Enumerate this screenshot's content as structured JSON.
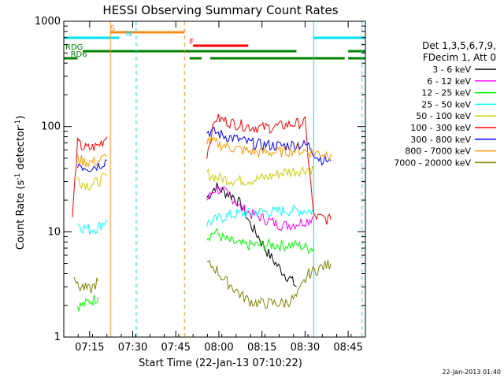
{
  "chart_data": {
    "type": "line",
    "title": "HESSI Observing Summary Count Rates",
    "xlabel": "Start Time (22-Jan-13 07:10:22)",
    "ylabel_main": "Count Rate (s",
    "ylabel_sup1": "-1",
    "ylabel_mid": " detector",
    "ylabel_sup2": "-1",
    "ylabel_end": ")",
    "xlim": [
      7.1,
      8.85
    ],
    "ylim": [
      1,
      1000
    ],
    "yscale": "log",
    "x_ticks": [
      {
        "t": 7.25,
        "label": "07:15"
      },
      {
        "t": 7.5,
        "label": "07:30"
      },
      {
        "t": 7.75,
        "label": "07:45"
      },
      {
        "t": 8.0,
        "label": "08:00"
      },
      {
        "t": 8.25,
        "label": "08:15"
      },
      {
        "t": 8.5,
        "label": "08:30"
      },
      {
        "t": 8.75,
        "label": "08:45"
      }
    ],
    "y_ticks": [
      {
        "v": 1,
        "label": "1"
      },
      {
        "v": 10,
        "label": "10"
      },
      {
        "v": 100,
        "label": "100"
      },
      {
        "v": 1000,
        "label": "1000"
      }
    ],
    "legend_header": [
      "Det 1,3,5,6,7,9,",
      "FDecim 1, Att 0"
    ],
    "series": [
      {
        "name": "3 - 6 keV",
        "color": "#000000",
        "points": [
          [
            7.93,
            21
          ],
          [
            7.98,
            27
          ],
          [
            8.03,
            24
          ],
          [
            8.08,
            22
          ],
          [
            8.13,
            18
          ],
          [
            8.18,
            12
          ],
          [
            8.23,
            9
          ],
          [
            8.28,
            6.5
          ],
          [
            8.33,
            5
          ],
          [
            8.38,
            4
          ],
          [
            8.42,
            3.5
          ],
          [
            8.45,
            3
          ]
        ]
      },
      {
        "name": "6 - 12 keV",
        "color": "#ff00ff",
        "points": [
          [
            7.93,
            20
          ],
          [
            7.98,
            26
          ],
          [
            8.03,
            24
          ],
          [
            8.08,
            21
          ],
          [
            8.13,
            17
          ],
          [
            8.18,
            15
          ],
          [
            8.23,
            14
          ],
          [
            8.28,
            13
          ],
          [
            8.33,
            12
          ],
          [
            8.38,
            11.5
          ],
          [
            8.45,
            12
          ],
          [
            8.52,
            13
          ],
          [
            8.55,
            14
          ]
        ]
      },
      {
        "name": "12 - 25 keV",
        "color": "#00ff00",
        "points": [
          [
            7.18,
            2
          ],
          [
            7.21,
            2
          ],
          [
            7.25,
            2.2
          ],
          [
            7.3,
            2.4
          ],
          [
            7.93,
            9
          ],
          [
            7.98,
            10
          ],
          [
            8.03,
            8.5
          ],
          [
            8.08,
            8
          ],
          [
            8.13,
            7.5
          ],
          [
            8.18,
            7.5
          ],
          [
            8.23,
            7.5
          ],
          [
            8.28,
            7.5
          ],
          [
            8.33,
            7.5
          ],
          [
            8.38,
            7.5
          ],
          [
            8.45,
            7.5
          ],
          [
            8.52,
            7
          ],
          [
            8.55,
            7
          ]
        ]
      },
      {
        "name": "25 - 50 keV",
        "color": "#00ffff",
        "points": [
          [
            7.18,
            12
          ],
          [
            7.21,
            11
          ],
          [
            7.25,
            10.5
          ],
          [
            7.3,
            11
          ],
          [
            7.35,
            13
          ],
          [
            7.93,
            12
          ],
          [
            7.98,
            13
          ],
          [
            8.03,
            14
          ],
          [
            8.08,
            14.5
          ],
          [
            8.13,
            15
          ],
          [
            8.18,
            15
          ],
          [
            8.23,
            15.5
          ],
          [
            8.28,
            15.5
          ],
          [
            8.33,
            15.5
          ],
          [
            8.38,
            16
          ],
          [
            8.45,
            16
          ],
          [
            8.52,
            16
          ],
          [
            8.55,
            15.5
          ]
        ]
      },
      {
        "name": "50 - 100 keV",
        "color": "#cccc00",
        "points": [
          [
            7.18,
            32
          ],
          [
            7.21,
            29
          ],
          [
            7.25,
            28
          ],
          [
            7.3,
            30
          ],
          [
            7.35,
            34
          ],
          [
            7.93,
            36
          ],
          [
            7.98,
            33
          ],
          [
            8.03,
            32
          ],
          [
            8.08,
            31
          ],
          [
            8.13,
            31
          ],
          [
            8.18,
            31
          ],
          [
            8.23,
            32
          ],
          [
            8.28,
            33
          ],
          [
            8.33,
            35
          ],
          [
            8.38,
            37
          ],
          [
            8.45,
            38
          ],
          [
            8.52,
            40
          ],
          [
            8.55,
            39
          ]
        ]
      },
      {
        "name": "100 - 300 keV",
        "color": "#ff0000",
        "points": [
          [
            7.15,
            14
          ],
          [
            7.18,
            70
          ],
          [
            7.21,
            63
          ],
          [
            7.25,
            62
          ],
          [
            7.3,
            66
          ],
          [
            7.35,
            80
          ],
          [
            7.93,
            55
          ],
          [
            7.98,
            120
          ],
          [
            8.03,
            115
          ],
          [
            8.08,
            108
          ],
          [
            8.13,
            104
          ],
          [
            8.18,
            100
          ],
          [
            8.23,
            98
          ],
          [
            8.28,
            98
          ],
          [
            8.33,
            100
          ],
          [
            8.38,
            103
          ],
          [
            8.45,
            107
          ],
          [
            8.5,
            110
          ],
          [
            8.55,
            14
          ],
          [
            8.6,
            13.5
          ],
          [
            8.65,
            13
          ]
        ]
      },
      {
        "name": "300 - 800 keV",
        "color": "#0000ff",
        "points": [
          [
            7.18,
            45
          ],
          [
            7.21,
            42
          ],
          [
            7.25,
            41
          ],
          [
            7.3,
            43
          ],
          [
            7.35,
            48
          ],
          [
            7.93,
            90
          ],
          [
            7.98,
            88
          ],
          [
            8.03,
            82
          ],
          [
            8.08,
            78
          ],
          [
            8.13,
            74
          ],
          [
            8.18,
            70
          ],
          [
            8.23,
            68
          ],
          [
            8.28,
            67
          ],
          [
            8.33,
            66
          ],
          [
            8.38,
            66
          ],
          [
            8.45,
            68
          ],
          [
            8.52,
            66
          ],
          [
            8.58,
            50
          ],
          [
            8.65,
            47
          ]
        ]
      },
      {
        "name": "800 - 7000 keV",
        "color": "#ff9900",
        "points": [
          [
            7.18,
            50
          ],
          [
            7.21,
            47
          ],
          [
            7.25,
            46
          ],
          [
            7.3,
            47
          ],
          [
            7.35,
            52
          ],
          [
            7.93,
            75
          ],
          [
            7.98,
            70
          ],
          [
            8.03,
            66
          ],
          [
            8.08,
            63
          ],
          [
            8.13,
            60
          ],
          [
            8.18,
            58
          ],
          [
            8.23,
            57
          ],
          [
            8.28,
            57
          ],
          [
            8.33,
            57
          ],
          [
            8.38,
            58
          ],
          [
            8.45,
            60
          ],
          [
            8.52,
            58
          ],
          [
            8.58,
            56
          ],
          [
            8.65,
            55
          ]
        ]
      },
      {
        "name": "7000 - 20000 keV",
        "color": "#808000",
        "points": [
          [
            7.16,
            4
          ],
          [
            7.18,
            3
          ],
          [
            7.21,
            3
          ],
          [
            7.25,
            2.8
          ],
          [
            7.3,
            3.4
          ],
          [
            7.93,
            5
          ],
          [
            7.98,
            4.5
          ],
          [
            8.03,
            3.5
          ],
          [
            8.08,
            3
          ],
          [
            8.13,
            2.5
          ],
          [
            8.18,
            2.2
          ],
          [
            8.23,
            2.1
          ],
          [
            8.28,
            2.1
          ],
          [
            8.33,
            2.1
          ],
          [
            8.38,
            2.1
          ],
          [
            8.45,
            2.4
          ],
          [
            8.52,
            4
          ],
          [
            8.58,
            4.5
          ],
          [
            8.65,
            5
          ]
        ]
      }
    ],
    "top_bars": [
      {
        "label": "S",
        "color": "#ff8c1a",
        "label_color": "#ff8c1a",
        "y": 1,
        "segments": [
          [
            7.37,
            7.8
          ]
        ],
        "label_at": 7.36
      },
      {
        "label": "N",
        "color": "#00e5ee",
        "label_color": "#00e5ee",
        "y": 2,
        "segments": [
          [
            7.1,
            7.42
          ],
          [
            8.55,
            8.85
          ]
        ],
        "label_at": 7.45
      },
      {
        "label": "F",
        "color": "#ff0000",
        "label_color": "#ff0000",
        "y": 3,
        "segments": [
          [
            7.85,
            8.17
          ]
        ],
        "label_at": 7.82
      },
      {
        "label": "RDG",
        "color": "#008000",
        "label_color": "#008000",
        "y": 4,
        "segments": [
          [
            7.21,
            8.45
          ],
          [
            8.75,
            8.85
          ]
        ],
        "label_at": 7.1
      },
      {
        "label": "RD6",
        "color": "#008000",
        "label_color": "#008000",
        "y": 5,
        "segments": [
          [
            7.1,
            7.18
          ],
          [
            7.83,
            7.9
          ],
          [
            7.95,
            8.73
          ],
          [
            8.75,
            8.85
          ]
        ],
        "label_at": 7.13
      }
    ],
    "vlines": [
      {
        "t": 7.1,
        "color": "#00e5ee",
        "dash": false
      },
      {
        "t": 7.37,
        "color": "#ff8c1a",
        "dash": false
      },
      {
        "t": 7.52,
        "color": "#00e5ee",
        "dash": true
      },
      {
        "t": 7.8,
        "color": "#ff8c1a",
        "dash": true
      },
      {
        "t": 8.55,
        "color": "#00e5ee",
        "dash": false
      },
      {
        "t": 8.83,
        "color": "#00e5ee",
        "dash": true
      }
    ],
    "footer": "22-Jan-2013 01:40",
    "grid": false,
    "legend_position": "right"
  }
}
